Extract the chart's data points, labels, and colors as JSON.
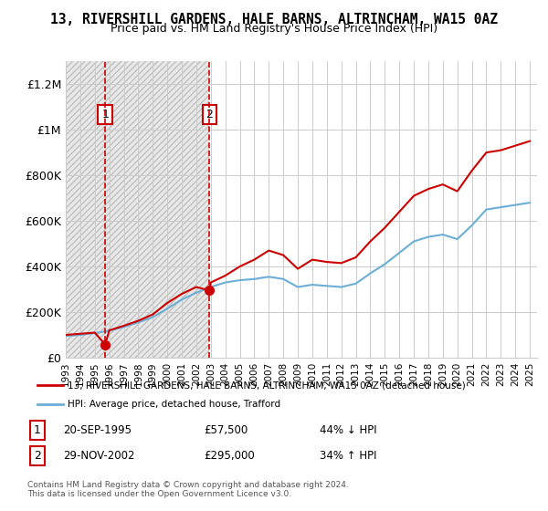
{
  "title": "13, RIVERSHILL GARDENS, HALE BARNS, ALTRINCHAM, WA15 0AZ",
  "subtitle": "Price paid vs. HM Land Registry's House Price Index (HPI)",
  "legend_line1": "13, RIVERSHILL GARDENS, HALE BARNS, ALTRINCHAM, WA15 0AZ (detached house)",
  "legend_line2": "HPI: Average price, detached house, Trafford",
  "footnote": "Contains HM Land Registry data © Crown copyright and database right 2024.\nThis data is licensed under the Open Government Licence v3.0.",
  "transactions": [
    {
      "label": "1",
      "date": "20-SEP-1995",
      "price": 57500,
      "pct": "44%",
      "dir": "↓",
      "x": 1995.72
    },
    {
      "label": "2",
      "date": "29-NOV-2002",
      "price": 295000,
      "pct": "34%",
      "dir": "↑",
      "x": 2002.91
    }
  ],
  "transaction_label_1": "1   20-SEP-1995          £57,500        44% ↓ HPI",
  "transaction_label_2": "2   29-NOV-2002          £295,000      34% ↑ HPI",
  "hpi_color": "#6baed6",
  "price_color": "#cc0000",
  "marker_color": "#cc0000",
  "dashed_line_color": "#cc0000",
  "background_hatch_color": "#d0d0d0",
  "ylim": [
    0,
    1300000
  ],
  "yticks": [
    0,
    200000,
    400000,
    600000,
    800000,
    1000000,
    1200000
  ],
  "ytick_labels": [
    "£0",
    "£200K",
    "£400K",
    "£600K",
    "£800K",
    "£1M",
    "£1.2M"
  ],
  "xlim_start": 1993.0,
  "xlim_end": 2025.5,
  "xticks": [
    1993,
    1994,
    1995,
    1996,
    1997,
    1998,
    1999,
    2000,
    2001,
    2002,
    2003,
    2004,
    2005,
    2006,
    2007,
    2008,
    2009,
    2010,
    2011,
    2012,
    2013,
    2014,
    2015,
    2016,
    2017,
    2018,
    2019,
    2020,
    2021,
    2022,
    2023,
    2024,
    2025
  ],
  "hpi_x": [
    1993,
    1994,
    1995,
    1996,
    1997,
    1998,
    1999,
    2000,
    2001,
    2002,
    2003,
    2004,
    2005,
    2006,
    2007,
    2008,
    2009,
    2010,
    2011,
    2012,
    2013,
    2014,
    2015,
    2016,
    2017,
    2018,
    2019,
    2020,
    2021,
    2022,
    2023,
    2024,
    2025
  ],
  "hpi_y": [
    95000,
    100000,
    108000,
    118000,
    135000,
    155000,
    178000,
    215000,
    255000,
    285000,
    310000,
    330000,
    340000,
    345000,
    355000,
    345000,
    310000,
    320000,
    315000,
    310000,
    325000,
    370000,
    410000,
    460000,
    510000,
    530000,
    540000,
    520000,
    580000,
    650000,
    660000,
    670000,
    680000
  ],
  "price_x": [
    1993,
    1994,
    1995,
    1995.72,
    1996,
    1997,
    1998,
    1999,
    2000,
    2001,
    2002,
    2002.91,
    2003,
    2004,
    2005,
    2006,
    2007,
    2008,
    2009,
    2010,
    2011,
    2012,
    2013,
    2014,
    2015,
    2016,
    2017,
    2018,
    2019,
    2020,
    2021,
    2022,
    2023,
    2024,
    2025
  ],
  "price_y": [
    100000,
    105000,
    110000,
    57500,
    120000,
    140000,
    162000,
    190000,
    240000,
    280000,
    310000,
    295000,
    330000,
    360000,
    400000,
    430000,
    470000,
    450000,
    390000,
    430000,
    420000,
    415000,
    440000,
    510000,
    570000,
    640000,
    710000,
    740000,
    760000,
    730000,
    820000,
    900000,
    910000,
    930000,
    950000
  ]
}
